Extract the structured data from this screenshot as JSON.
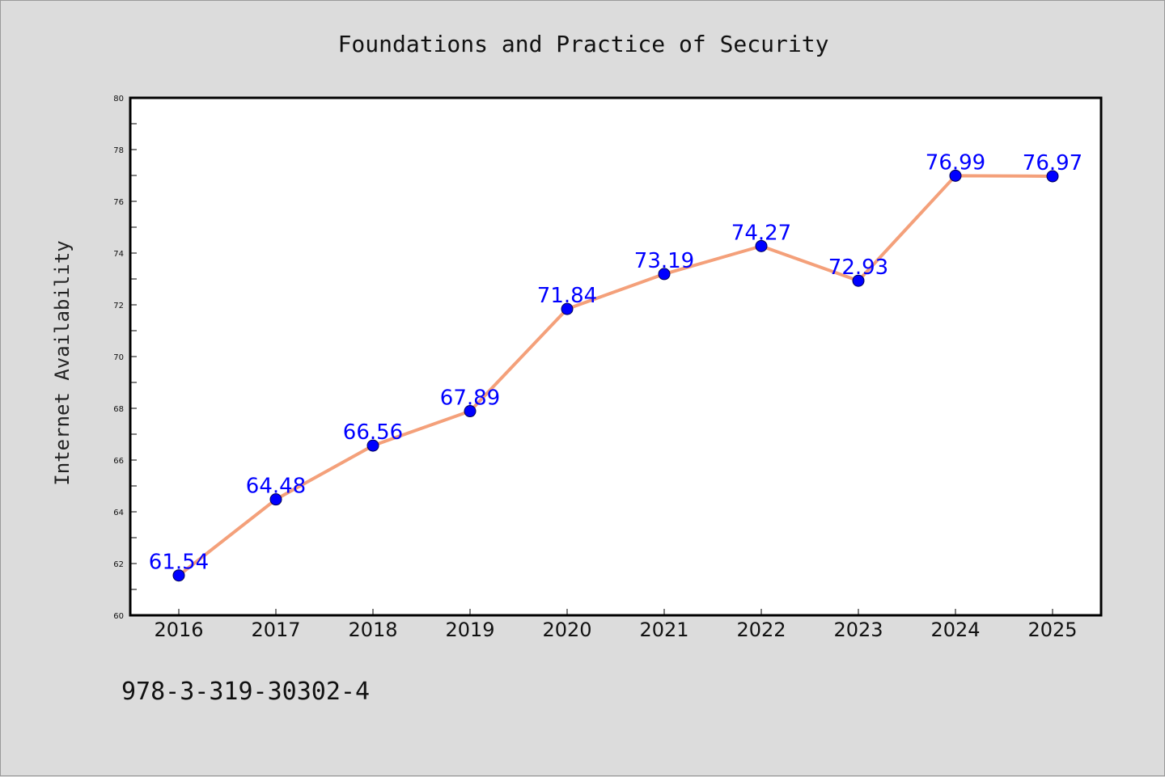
{
  "chart_data": {
    "type": "line",
    "title": "Foundations and Practice of Security",
    "xlabel": "",
    "ylabel": "Internet Availability",
    "categories": [
      "2016",
      "2017",
      "2018",
      "2019",
      "2020",
      "2021",
      "2022",
      "2023",
      "2024",
      "2025"
    ],
    "series": [
      {
        "values": [
          61.54,
          64.48,
          66.56,
          67.89,
          71.84,
          73.19,
          74.27,
          72.93,
          76.99,
          76.97
        ],
        "value_labels": [
          "61.54",
          "64.48",
          "66.56",
          "67.89",
          "71.84",
          "73.19",
          "74.27",
          "72.93",
          "76.99",
          "76.97"
        ],
        "line_color": "#f4a07a",
        "marker_color": "#0000ff",
        "label_color": "#0000ff"
      }
    ],
    "ylim": [
      60,
      80
    ],
    "yticks": [
      "60",
      "62",
      "64",
      "66",
      "68",
      "70",
      "72",
      "74",
      "76",
      "78",
      "80"
    ],
    "grid": false,
    "legend": "none",
    "footer_text": "978-3-319-30302-4"
  }
}
